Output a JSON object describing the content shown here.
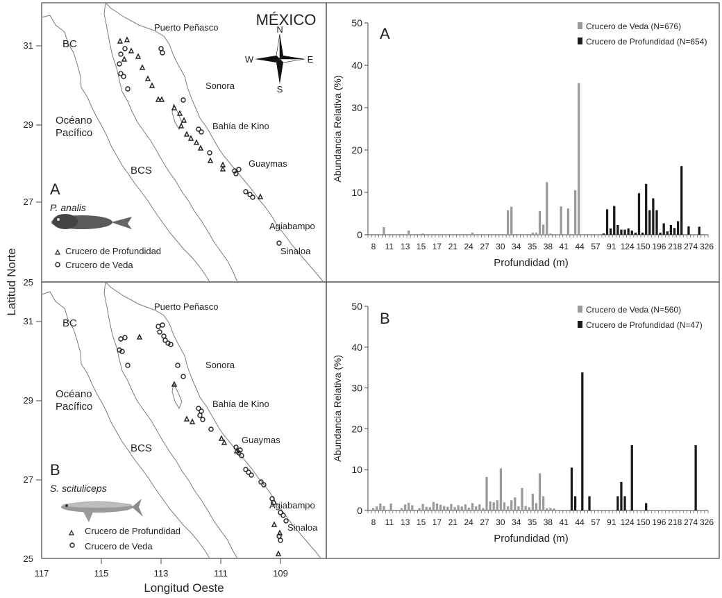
{
  "axes": {
    "ylabel_left": "Latitud Norte",
    "xlabel_bottom": "Longitud Oeste",
    "lat_ticks": [
      "31",
      "29",
      "27",
      "25"
    ],
    "lon_ticks": [
      "117",
      "115",
      "113",
      "111",
      "109"
    ]
  },
  "map_a": {
    "panel_letter": "A",
    "species": "P. analis",
    "country": "MÉXICO",
    "compass": {
      "n": "N",
      "s": "S",
      "e": "E",
      "w": "W"
    },
    "labels": {
      "bc": "BC",
      "bcs": "BCS",
      "ocean_1": "Océano",
      "ocean_2": "Pacífico",
      "sonora": "Sonora",
      "puerto": "Puerto Peñasco",
      "kino": "Bahía de Kino",
      "guaymas": "Guaymas",
      "agiabampo": "Agiabampo",
      "sinaloa": "Sinaloa"
    },
    "legend": {
      "prof": "Crucero de Profundidad",
      "veda": "Crucero de Veda"
    }
  },
  "map_b": {
    "panel_letter": "B",
    "species": "S. scituliceps",
    "labels": {
      "bc": "BC",
      "bcs": "BCS",
      "ocean_1": "Océano",
      "ocean_2": "Pacífico",
      "sonora": "Sonora",
      "puerto": "Puerto Peñasco",
      "kino": "Bahía de Kino",
      "guaymas": "Guaymas",
      "agiabampo": "Agiabampo",
      "sinaloa": "Sinaloa"
    },
    "legend": {
      "prof": "Crucero de Profundidad",
      "veda": "Crucero de Veda"
    }
  },
  "colors": {
    "veda": "#9a9a9a",
    "prof": "#1a1a1a",
    "frame": "#444444",
    "coast": "#7a7a7a"
  },
  "chart_data": [
    {
      "type": "bar",
      "panel_letter": "A",
      "ylabel": "Abundancia Relativa (%)",
      "xlabel": "Profundidad (m)",
      "ylim": [
        0,
        50
      ],
      "yticks": [
        "0",
        "10",
        "20",
        "30",
        "40",
        "50"
      ],
      "xticks": [
        "8",
        "11",
        "13",
        "15",
        "17",
        "21",
        "24",
        "27",
        "30",
        "34",
        "35",
        "38",
        "41",
        "44",
        "57",
        "91",
        "124",
        "150",
        "196",
        "218",
        "274",
        "326"
      ],
      "bar_count": 96,
      "series": [
        {
          "name": "Crucero de Veda (N=676)",
          "color": "#9a9a9a",
          "bars": [
            [
              4,
              1.8
            ],
            [
              11,
              1.0
            ],
            [
              15,
              0.3
            ],
            [
              29,
              0.5
            ],
            [
              39,
              5.8
            ],
            [
              40,
              6.6
            ],
            [
              46,
              0.5
            ],
            [
              47,
              0.5
            ],
            [
              48,
              5.6
            ],
            [
              49,
              2.4
            ],
            [
              50,
              12.4
            ],
            [
              51,
              0.3
            ],
            [
              54,
              6.7
            ],
            [
              56,
              6.2
            ],
            [
              58,
              10.5
            ],
            [
              59,
              35.8
            ]
          ]
        },
        {
          "name": "Crucero de Profundidad (N=654)",
          "color": "#1a1a1a",
          "bars": [
            [
              66,
              0.3
            ],
            [
              67,
              6.0
            ],
            [
              68,
              1.5
            ],
            [
              69,
              6.8
            ],
            [
              70,
              2.3
            ],
            [
              71,
              1.2
            ],
            [
              72,
              1.2
            ],
            [
              73,
              1.5
            ],
            [
              74,
              1.0
            ],
            [
              75,
              0.5
            ],
            [
              76,
              9.8
            ],
            [
              77,
              0.5
            ],
            [
              78,
              12.0
            ],
            [
              79,
              5.8
            ],
            [
              80,
              8.6
            ],
            [
              81,
              5.8
            ],
            [
              82,
              0.5
            ],
            [
              83,
              2.7
            ],
            [
              84,
              0.8
            ],
            [
              85,
              2.3
            ],
            [
              86,
              1.6
            ],
            [
              87,
              3.2
            ],
            [
              88,
              16.2
            ],
            [
              90,
              2.0
            ],
            [
              93,
              1.9
            ]
          ]
        }
      ]
    },
    {
      "type": "bar",
      "panel_letter": "B",
      "ylabel": "Abundancia Relativa (%)",
      "xlabel": "Profundidad (m)",
      "ylim": [
        0,
        50
      ],
      "yticks": [
        "0",
        "10",
        "20",
        "30",
        "40",
        "50"
      ],
      "xticks": [
        "8",
        "11",
        "13",
        "15",
        "17",
        "21",
        "24",
        "27",
        "30",
        "34",
        "35",
        "38",
        "41",
        "44",
        "57",
        "91",
        "124",
        "150",
        "196",
        "218",
        "274",
        "326"
      ],
      "bar_count": 96,
      "series": [
        {
          "name": "Crucero de Veda (N=560)",
          "color": "#9a9a9a",
          "bars": [
            [
              1,
              0.6
            ],
            [
              2,
              1.0
            ],
            [
              3,
              1.7
            ],
            [
              4,
              1.1
            ],
            [
              6,
              1.7
            ],
            [
              9,
              0.6
            ],
            [
              10,
              1.5
            ],
            [
              11,
              1.9
            ],
            [
              12,
              1.3
            ],
            [
              14,
              0.6
            ],
            [
              15,
              1.6
            ],
            [
              16,
              0.9
            ],
            [
              17,
              0.8
            ],
            [
              18,
              2.1
            ],
            [
              19,
              1.7
            ],
            [
              20,
              1.4
            ],
            [
              21,
              1.1
            ],
            [
              22,
              0.9
            ],
            [
              23,
              1.6
            ],
            [
              24,
              0.8
            ],
            [
              25,
              1.3
            ],
            [
              26,
              1.0
            ],
            [
              27,
              1.5
            ],
            [
              28,
              0.7
            ],
            [
              29,
              1.8
            ],
            [
              30,
              1.0
            ],
            [
              31,
              1.5
            ],
            [
              32,
              0.6
            ],
            [
              33,
              8.2
            ],
            [
              34,
              2.2
            ],
            [
              35,
              2.0
            ],
            [
              36,
              2.5
            ],
            [
              37,
              10.3
            ],
            [
              38,
              2.0
            ],
            [
              39,
              1.0
            ],
            [
              40,
              2.5
            ],
            [
              41,
              3.2
            ],
            [
              42,
              1.0
            ],
            [
              43,
              5.5
            ],
            [
              44,
              1.1
            ],
            [
              45,
              0.8
            ],
            [
              46,
              4.1
            ],
            [
              47,
              1.8
            ],
            [
              48,
              9.1
            ],
            [
              49,
              3.5
            ],
            [
              50,
              0.5
            ],
            [
              51,
              0.6
            ],
            [
              52,
              0.5
            ]
          ]
        },
        {
          "name": "Crucero de Profundidad (N=47)",
          "color": "#1a1a1a",
          "bars": [
            [
              57,
              10.5
            ],
            [
              58,
              3.5
            ],
            [
              60,
              33.8
            ],
            [
              62,
              3.5
            ],
            [
              70,
              3.5
            ],
            [
              71,
              7.0
            ],
            [
              72,
              3.5
            ],
            [
              74,
              16.0
            ],
            [
              78,
              1.8
            ],
            [
              92,
              16.0
            ]
          ]
        }
      ]
    }
  ]
}
